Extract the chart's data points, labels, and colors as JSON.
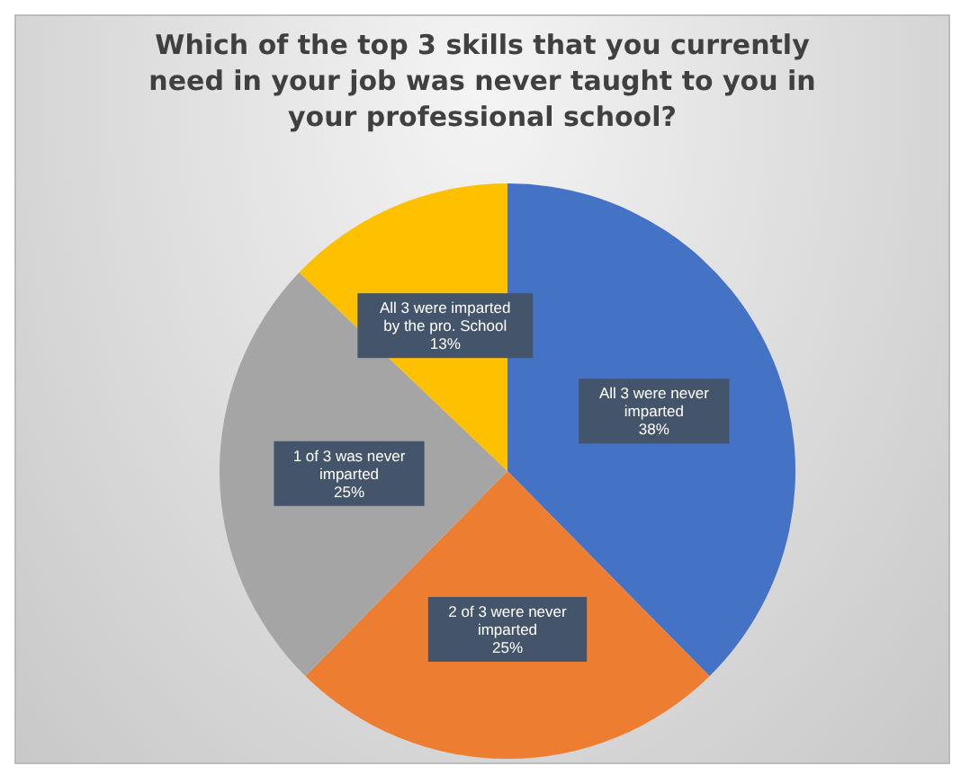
{
  "chart_data": {
    "type": "pie",
    "title": "Which of the top 3 skills that you currently need in your job was never taught to you in your professional school?",
    "categories": [
      "All 3 were never imparted",
      "2 of 3 were never imparted",
      "1 of 3 was never imparted",
      "All 3 were imparted by the pro. School"
    ],
    "values": [
      38,
      25,
      25,
      13
    ],
    "value_labels": [
      "38%",
      "25%",
      "25%",
      "13%"
    ],
    "colors": [
      "#4472c4",
      "#ed7d31",
      "#a5a5a5",
      "#ffc000"
    ]
  }
}
